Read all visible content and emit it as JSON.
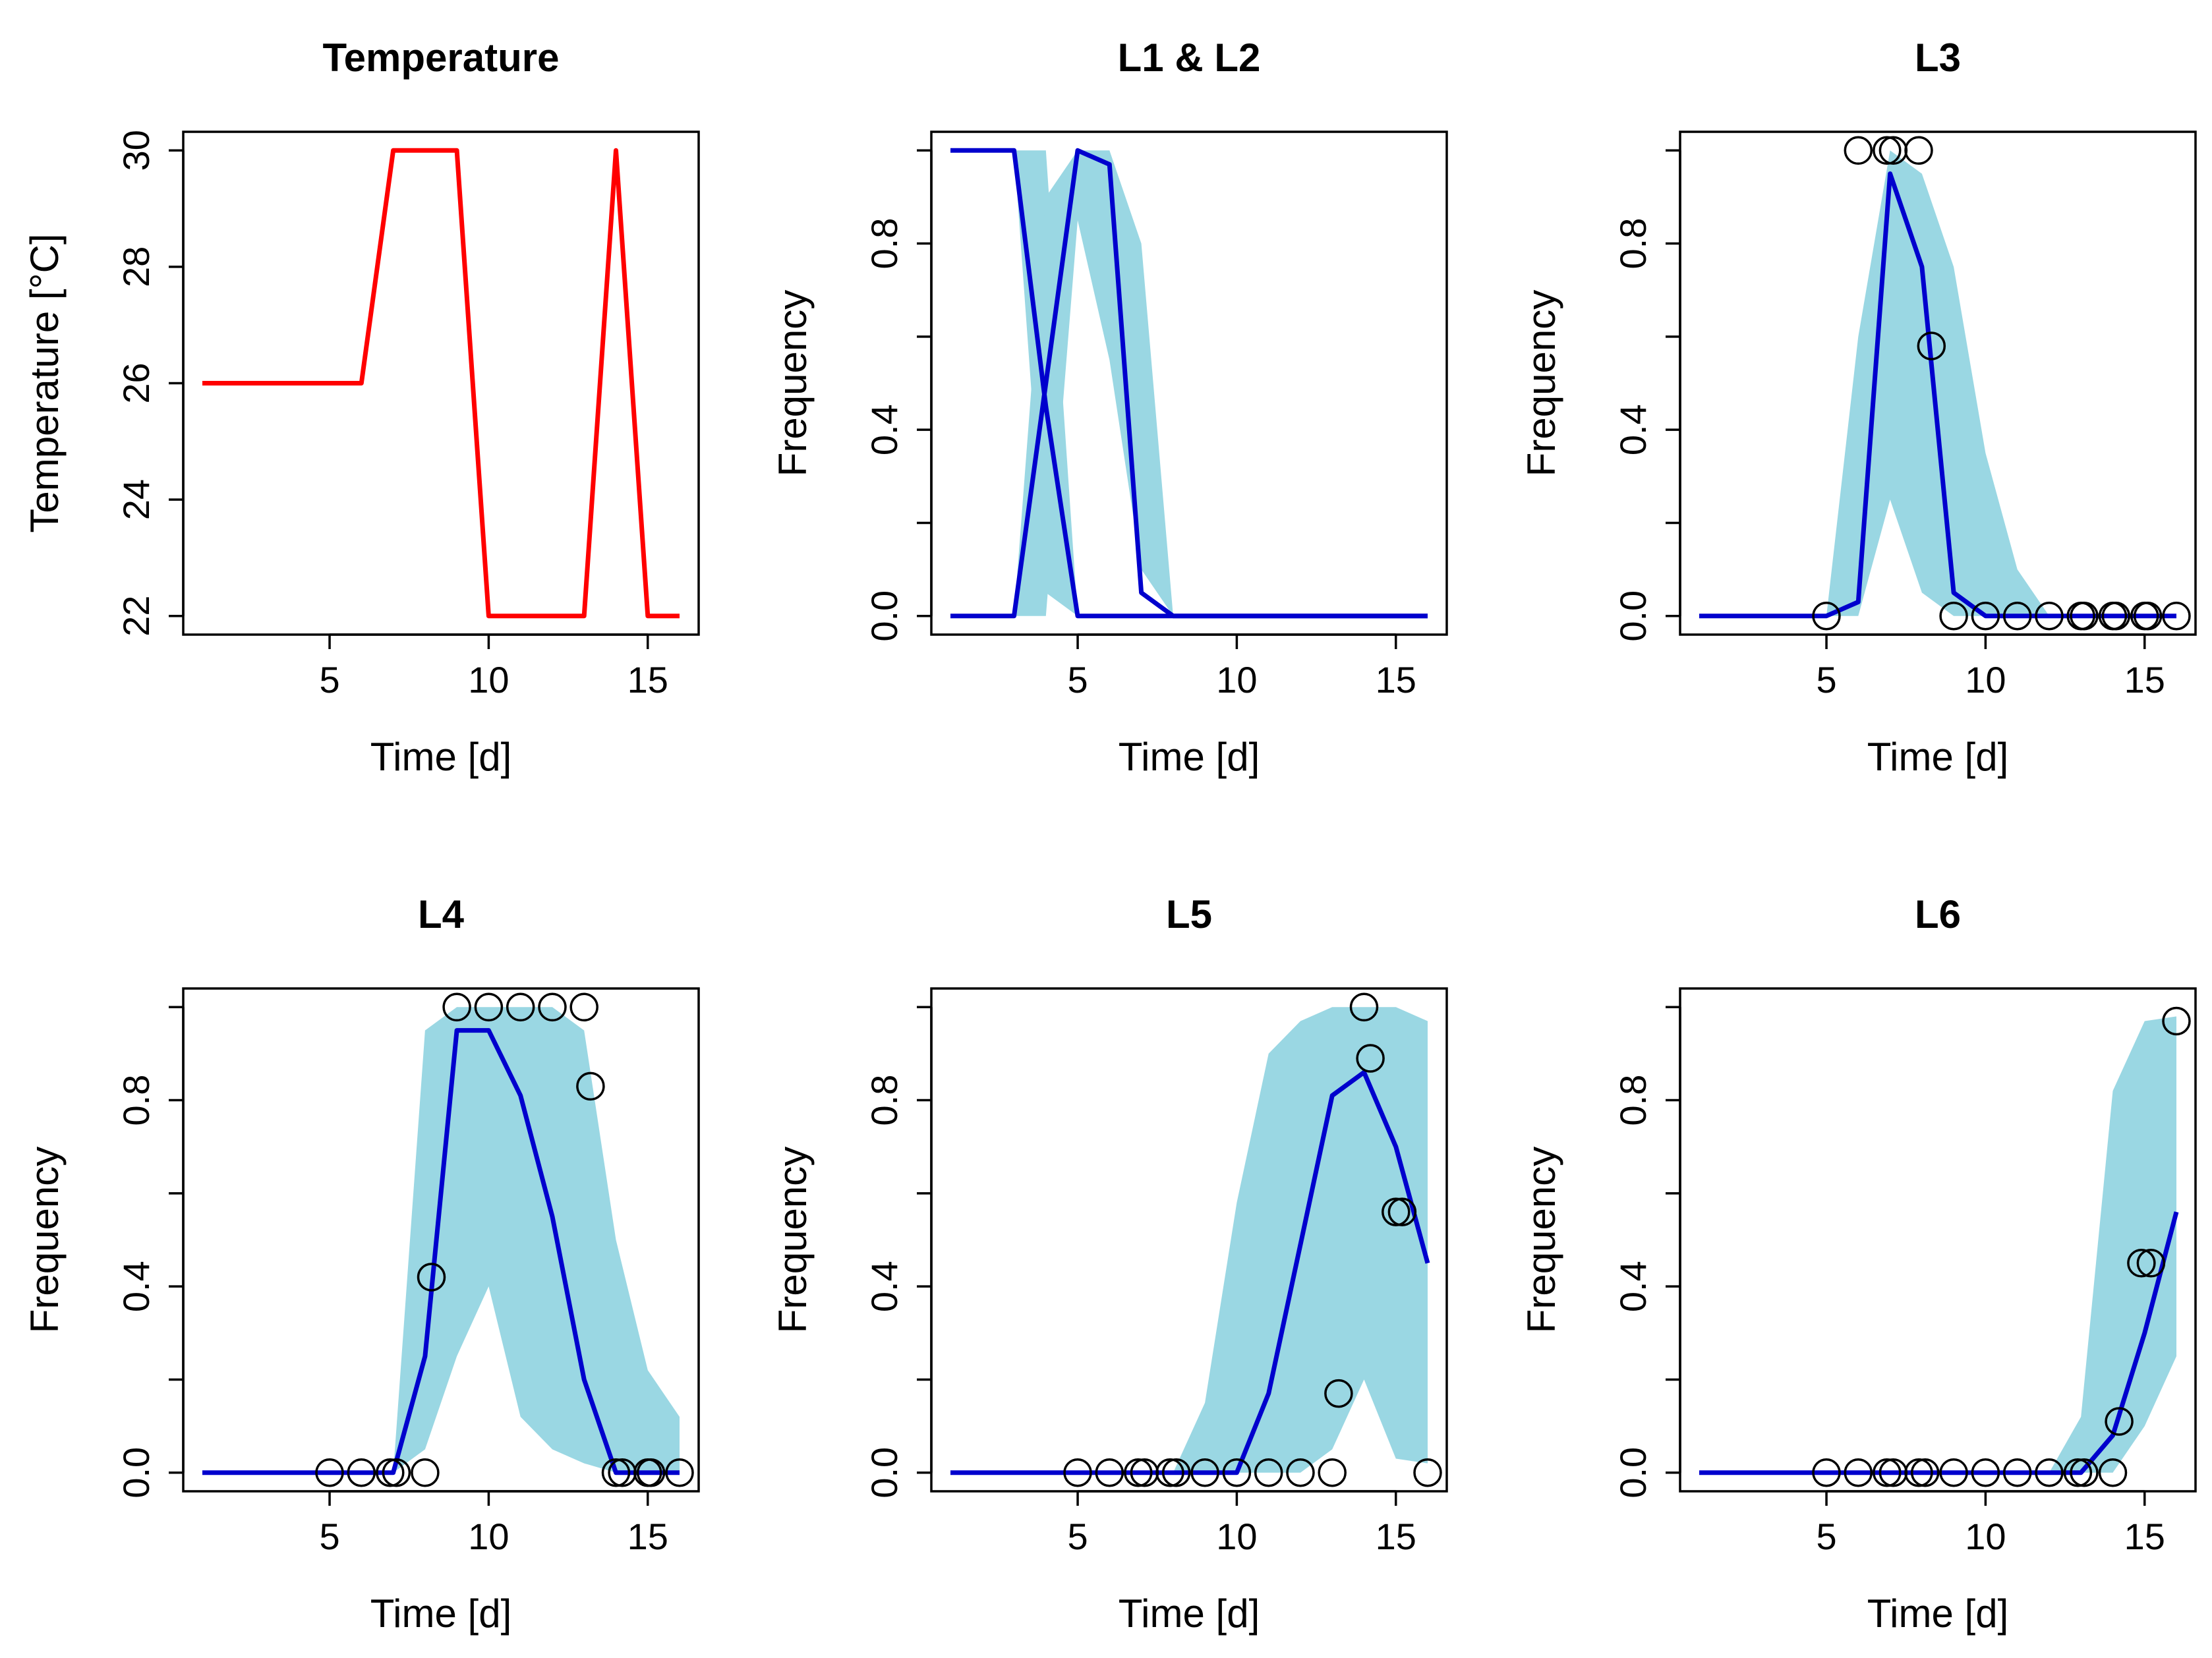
{
  "colors": {
    "temperature_line": "#ff0000",
    "model_line": "#0000cd",
    "band": "#9ad7e3",
    "observed_marker": "#000000"
  },
  "chart_data": [
    {
      "id": "temperature",
      "type": "line",
      "title": "Temperature",
      "xlabel": "Time [d]",
      "ylabel": "Temperature [°C]",
      "xlim": [
        1,
        16
      ],
      "ylim": [
        22,
        30
      ],
      "xticks": [
        "5",
        "10",
        "15"
      ],
      "yticks": [
        "22",
        "24",
        "26",
        "28",
        "30"
      ],
      "series": [
        {
          "name": "temperature",
          "x": [
            1,
            6,
            7,
            9,
            10,
            13,
            14,
            15,
            16
          ],
          "y": [
            26,
            26,
            30,
            30,
            22,
            22,
            30,
            22,
            22
          ]
        }
      ]
    },
    {
      "id": "l1-l2",
      "type": "line",
      "title": "L1 & L2",
      "xlabel": "Time [d]",
      "ylabel": "Frequency",
      "xlim": [
        1,
        16
      ],
      "ylim": [
        0,
        1
      ],
      "xticks": [
        "5",
        "10",
        "15"
      ],
      "yticks": [
        "0.0",
        "0.4",
        "0.8"
      ],
      "bands": [
        {
          "name": "L1 interval",
          "x": [
            1,
            3,
            4,
            5
          ],
          "lower": [
            1,
            1,
            0.05,
            0
          ],
          "upper": [
            1,
            1,
            1,
            0
          ]
        },
        {
          "name": "L2 interval",
          "x": [
            3,
            4,
            5,
            6,
            7,
            8
          ],
          "lower": [
            0,
            0,
            0.85,
            0.55,
            0.1,
            0
          ],
          "upper": [
            0,
            0.9,
            1,
            1,
            0.8,
            0
          ]
        }
      ],
      "series": [
        {
          "name": "L1",
          "x": [
            1,
            3,
            4,
            5,
            16
          ],
          "y": [
            1,
            1,
            0.45,
            0,
            0
          ]
        },
        {
          "name": "L2",
          "x": [
            1,
            3,
            4,
            5,
            6,
            7,
            8,
            16
          ],
          "y": [
            0,
            0,
            0.5,
            1,
            0.97,
            0.05,
            0,
            0
          ]
        }
      ]
    },
    {
      "id": "l3",
      "type": "line",
      "title": "L3",
      "xlabel": "Time [d]",
      "ylabel": "Frequency",
      "xlim": [
        1,
        16
      ],
      "ylim": [
        0,
        1
      ],
      "xticks": [
        "5",
        "10",
        "15"
      ],
      "yticks": [
        "0.0",
        "0.4",
        "0.8"
      ],
      "bands": [
        {
          "name": "interval",
          "x": [
            5,
            6,
            7,
            8,
            9,
            10,
            11,
            12
          ],
          "lower": [
            0,
            0,
            0.25,
            0.05,
            0,
            0,
            0,
            0
          ],
          "upper": [
            0,
            0.6,
            1,
            0.95,
            0.75,
            0.35,
            0.1,
            0
          ]
        }
      ],
      "series": [
        {
          "name": "model",
          "x": [
            1,
            5,
            6,
            7,
            8,
            9,
            10,
            16
          ],
          "y": [
            0,
            0,
            0.03,
            0.95,
            0.75,
            0.05,
            0,
            0
          ]
        }
      ],
      "points": {
        "x": [
          5,
          6,
          6.9,
          7.1,
          7.9,
          8.3,
          9,
          10,
          11,
          12,
          13,
          13.1,
          14,
          14.1,
          15,
          15.1,
          16
        ],
        "y": [
          0,
          1,
          1,
          1,
          1,
          0.58,
          0,
          0,
          0,
          0,
          0,
          0,
          0,
          0,
          0,
          0,
          0
        ]
      }
    },
    {
      "id": "l4",
      "type": "line",
      "title": "L4",
      "xlabel": "Time [d]",
      "ylabel": "Frequency",
      "xlim": [
        1,
        16
      ],
      "ylim": [
        0,
        1
      ],
      "xticks": [
        "5",
        "10",
        "15"
      ],
      "yticks": [
        "0.0",
        "0.4",
        "0.8"
      ],
      "bands": [
        {
          "name": "interval",
          "x": [
            7,
            8,
            9,
            10,
            11,
            12,
            13,
            14,
            15,
            16
          ],
          "lower": [
            0,
            0.05,
            0.25,
            0.4,
            0.12,
            0.05,
            0.02,
            0,
            0,
            0
          ],
          "upper": [
            0,
            0.95,
            1,
            1,
            1,
            1,
            0.95,
            0.5,
            0.22,
            0.12
          ]
        }
      ],
      "series": [
        {
          "name": "model",
          "x": [
            1,
            7,
            8,
            9,
            10,
            11,
            12,
            13,
            14,
            16
          ],
          "y": [
            0,
            0,
            0.25,
            0.95,
            0.95,
            0.81,
            0.55,
            0.2,
            0,
            0
          ]
        }
      ],
      "points": {
        "x": [
          5,
          6,
          6.9,
          7.1,
          8,
          8.2,
          9,
          10,
          11,
          12,
          13,
          13.2,
          14,
          14.2,
          15,
          15.1,
          16
        ],
        "y": [
          0,
          0,
          0,
          0,
          0,
          0.42,
          1,
          1,
          1,
          1,
          1,
          0.83,
          0,
          0,
          0,
          0,
          0
        ]
      }
    },
    {
      "id": "l5",
      "type": "line",
      "title": "L5",
      "xlabel": "Time [d]",
      "ylabel": "Frequency",
      "xlim": [
        1,
        16
      ],
      "ylim": [
        0,
        1
      ],
      "xticks": [
        "5",
        "10",
        "15"
      ],
      "yticks": [
        "0.0",
        "0.4",
        "0.8"
      ],
      "bands": [
        {
          "name": "interval",
          "x": [
            8,
            9,
            10,
            11,
            12,
            13,
            14,
            15,
            16
          ],
          "lower": [
            0,
            0,
            0,
            0,
            0,
            0.05,
            0.2,
            0.03,
            0.02
          ],
          "upper": [
            0,
            0.15,
            0.58,
            0.9,
            0.97,
            1,
            1,
            1,
            0.97
          ]
        }
      ],
      "series": [
        {
          "name": "model",
          "x": [
            1,
            10,
            11,
            12,
            13,
            14,
            15,
            16
          ],
          "y": [
            0,
            0,
            0.17,
            0.49,
            0.81,
            0.86,
            0.7,
            0.45
          ]
        }
      ],
      "points": {
        "x": [
          5,
          6,
          6.9,
          7.1,
          7.9,
          8.1,
          9,
          10,
          11,
          12,
          13,
          13.2,
          14,
          14.2,
          15,
          15.2,
          16
        ],
        "y": [
          0,
          0,
          0,
          0,
          0,
          0,
          0,
          0,
          0,
          0,
          0,
          0.17,
          1,
          0.89,
          0.56,
          0.56,
          0
        ]
      }
    },
    {
      "id": "l6",
      "type": "line",
      "title": "L6",
      "xlabel": "Time [d]",
      "ylabel": "Frequency",
      "xlim": [
        1,
        16
      ],
      "ylim": [
        0,
        1
      ],
      "xticks": [
        "5",
        "10",
        "15"
      ],
      "yticks": [
        "0.0",
        "0.4",
        "0.8"
      ],
      "bands": [
        {
          "name": "interval",
          "x": [
            12,
            13,
            14,
            15,
            16
          ],
          "lower": [
            0,
            0,
            0,
            0.1,
            0.25
          ],
          "upper": [
            0,
            0.12,
            0.82,
            0.97,
            0.98
          ]
        }
      ],
      "series": [
        {
          "name": "model",
          "x": [
            1,
            13,
            14,
            15,
            16
          ],
          "y": [
            0,
            0,
            0.08,
            0.3,
            0.56
          ]
        }
      ],
      "points": {
        "x": [
          5,
          6,
          6.9,
          7.1,
          7.9,
          8.1,
          9,
          10,
          11,
          12,
          12.9,
          13.1,
          14,
          14.2,
          14.9,
          15.2,
          16
        ],
        "y": [
          0,
          0,
          0,
          0,
          0,
          0,
          0,
          0,
          0,
          0,
          0,
          0,
          0,
          0.11,
          0.45,
          0.45,
          0.97
        ]
      }
    }
  ]
}
